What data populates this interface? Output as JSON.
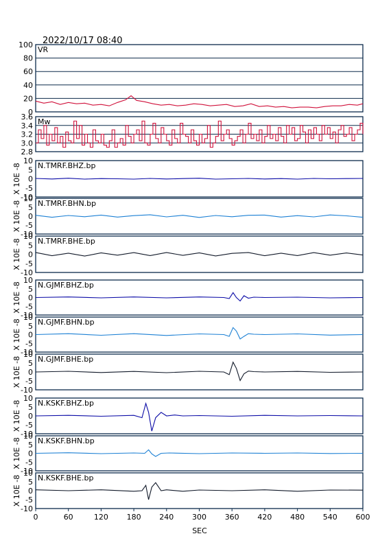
{
  "datetime": "2022/10/17  08:40",
  "xlabel": "SEC",
  "colors": {
    "red": "#d0103a",
    "navy": "#0a0aa6",
    "cyan": "#1a7fd4",
    "black": "#101828"
  },
  "chart_data": {
    "type": "line",
    "xlim": [
      0,
      600
    ],
    "xticks": [
      0,
      60,
      120,
      180,
      240,
      300,
      360,
      420,
      480,
      540,
      600
    ],
    "panels": [
      {
        "label": "VR",
        "ylabel": "",
        "ylim": [
          0,
          100
        ],
        "yticks": [
          "100",
          "80",
          "60",
          "40",
          "20",
          "0"
        ],
        "grid": true,
        "color": "red",
        "series": {
          "x": [
            0,
            15,
            30,
            45,
            60,
            75,
            90,
            105,
            120,
            135,
            150,
            165,
            175,
            185,
            200,
            215,
            230,
            245,
            260,
            275,
            290,
            305,
            320,
            335,
            350,
            365,
            380,
            395,
            410,
            425,
            440,
            455,
            470,
            485,
            500,
            515,
            530,
            545,
            560,
            575,
            590,
            600
          ],
          "y": [
            16,
            13,
            15,
            11,
            14,
            12,
            13,
            10,
            11,
            9,
            14,
            18,
            24,
            17,
            15,
            12,
            10,
            11,
            9,
            10,
            12,
            11,
            9,
            10,
            11,
            8,
            9,
            12,
            8,
            9,
            7,
            8,
            6,
            7,
            7,
            6,
            8,
            9,
            9,
            11,
            10,
            12
          ]
        }
      },
      {
        "label": "Mw",
        "ylabel": "",
        "ylim": [
          2.8,
          3.6
        ],
        "yticks": [
          "3.6",
          "3.4",
          "3.2",
          "3.0",
          "2.8"
        ],
        "grid": true,
        "color": "red",
        "series": {
          "x": [
            0,
            5,
            10,
            15,
            20,
            25,
            30,
            35,
            40,
            45,
            50,
            55,
            60,
            65,
            70,
            75,
            80,
            85,
            90,
            95,
            100,
            105,
            110,
            115,
            120,
            125,
            130,
            135,
            140,
            145,
            150,
            155,
            160,
            165,
            170,
            175,
            180,
            185,
            190,
            195,
            200,
            205,
            210,
            215,
            220,
            225,
            230,
            235,
            240,
            245,
            250,
            255,
            260,
            265,
            270,
            275,
            280,
            285,
            290,
            295,
            300,
            305,
            310,
            315,
            320,
            325,
            330,
            335,
            340,
            345,
            350,
            355,
            360,
            365,
            370,
            375,
            380,
            385,
            390,
            395,
            400,
            405,
            410,
            415,
            420,
            425,
            430,
            435,
            440,
            445,
            450,
            455,
            460,
            465,
            470,
            475,
            480,
            485,
            490,
            495,
            500,
            505,
            510,
            515,
            520,
            525,
            530,
            535,
            540,
            545,
            550,
            555,
            560,
            565,
            570,
            575,
            580,
            585,
            590,
            595,
            600
          ],
          "y": [
            3.0,
            3.3,
            3.1,
            3.4,
            2.95,
            3.2,
            3.05,
            3.35,
            3.0,
            3.15,
            2.9,
            3.25,
            3.05,
            3.0,
            3.5,
            3.1,
            3.4,
            2.95,
            3.2,
            3.0,
            2.9,
            3.3,
            3.05,
            3.0,
            3.2,
            2.95,
            2.9,
            3.05,
            3.3,
            2.9,
            3.0,
            3.1,
            2.95,
            3.4,
            3.15,
            3.0,
            3.2,
            3.3,
            3.05,
            3.5,
            3.0,
            2.95,
            3.2,
            3.45,
            3.1,
            3.0,
            3.35,
            3.2,
            3.05,
            2.95,
            3.3,
            3.1,
            3.0,
            3.45,
            3.2,
            3.15,
            3.0,
            3.3,
            3.05,
            2.95,
            3.2,
            3.0,
            3.1,
            3.4,
            2.9,
            3.0,
            3.15,
            3.5,
            3.05,
            3.2,
            3.3,
            3.1,
            2.95,
            3.05,
            3.15,
            3.3,
            3.0,
            3.2,
            3.45,
            3.1,
            3.2,
            3.05,
            3.3,
            3.0,
            3.15,
            3.4,
            3.1,
            3.2,
            3.05,
            3.35,
            3.15,
            3.0,
            3.4,
            3.2,
            3.35,
            3.05,
            3.1,
            3.4,
            3.25,
            3.0,
            3.3,
            3.1,
            3.35,
            3.2,
            3.05,
            3.4,
            3.2,
            3.35,
            3.1,
            3.25,
            3.0,
            3.3,
            3.4,
            3.15,
            3.2,
            3.35,
            3.05,
            3.2,
            3.3,
            3.45,
            3.2
          ]
        }
      },
      {
        "label": "N.TMRF.BHZ.bp",
        "ylabel": "X 10E -8",
        "ylim": [
          -10,
          10
        ],
        "yticks": [
          "10",
          "5",
          "0",
          "-5",
          "-10"
        ],
        "grid": false,
        "color": "navy",
        "series": {
          "x": [
            0,
            30,
            60,
            90,
            120,
            150,
            180,
            210,
            240,
            270,
            300,
            330,
            360,
            390,
            420,
            450,
            480,
            510,
            540,
            570,
            600
          ],
          "y": [
            0.2,
            -0.1,
            0.3,
            -0.2,
            0.1,
            0.0,
            -0.2,
            0.2,
            -0.1,
            0.1,
            0.3,
            -0.2,
            0.0,
            0.2,
            -0.1,
            0.1,
            -0.2,
            0.2,
            0.0,
            0.1,
            0.2
          ]
        }
      },
      {
        "label": "N.TMRF.BHN.bp",
        "ylabel": "X 10E -8",
        "ylim": [
          -10,
          10
        ],
        "yticks": [
          "10",
          "5",
          "0",
          "-5",
          "-10"
        ],
        "grid": false,
        "color": "cyan",
        "series": {
          "x": [
            0,
            30,
            60,
            90,
            120,
            150,
            180,
            210,
            240,
            270,
            300,
            330,
            360,
            390,
            420,
            450,
            480,
            510,
            540,
            570,
            600
          ],
          "y": [
            0.5,
            -0.6,
            0.4,
            -0.3,
            0.6,
            -0.5,
            0.3,
            0.8,
            -0.4,
            0.5,
            -0.7,
            0.4,
            -0.3,
            0.5,
            0.6,
            -0.5,
            0.3,
            -0.4,
            0.7,
            0.2,
            -0.6
          ]
        }
      },
      {
        "label": "N.TMRF.BHE.bp",
        "ylabel": "X 10E -8",
        "ylim": [
          -10,
          10
        ],
        "yticks": [
          "10",
          "5",
          "0",
          "-5",
          "-10"
        ],
        "grid": false,
        "color": "black",
        "series": {
          "x": [
            0,
            30,
            60,
            90,
            120,
            150,
            180,
            210,
            240,
            270,
            300,
            330,
            360,
            390,
            420,
            450,
            480,
            510,
            540,
            570,
            600
          ],
          "y": [
            1.0,
            -0.8,
            0.6,
            -1.0,
            0.8,
            -0.5,
            0.9,
            -0.7,
            1.0,
            -0.6,
            0.8,
            -0.9,
            0.5,
            1.0,
            -0.8,
            0.6,
            -0.7,
            0.9,
            -0.5,
            0.7,
            -0.4
          ]
        }
      },
      {
        "label": "N.GJMF.BHZ.bp",
        "ylabel": "X 10E -8",
        "ylim": [
          -10,
          10
        ],
        "yticks": [
          "10",
          "5",
          "0",
          "-5",
          "-10"
        ],
        "grid": false,
        "color": "navy",
        "series": {
          "x": [
            0,
            60,
            120,
            180,
            240,
            300,
            345,
            355,
            362,
            368,
            375,
            382,
            390,
            400,
            420,
            480,
            540,
            600
          ],
          "y": [
            0.0,
            0.3,
            -0.2,
            0.3,
            -0.2,
            0.3,
            0.0,
            -0.6,
            2.8,
            0.0,
            -2.0,
            1.0,
            -0.4,
            0.2,
            0.0,
            0.2,
            -0.2,
            0.0
          ]
        }
      },
      {
        "label": "N.GJMF.BHN.bp",
        "ylabel": "X 10E -8",
        "ylim": [
          -10,
          10
        ],
        "yticks": [
          "10",
          "5",
          "0",
          "-5",
          "-10"
        ],
        "grid": false,
        "color": "cyan",
        "series": {
          "x": [
            0,
            60,
            120,
            180,
            240,
            300,
            345,
            355,
            362,
            368,
            375,
            382,
            390,
            400,
            420,
            480,
            540,
            600
          ],
          "y": [
            0.0,
            0.5,
            -0.4,
            0.5,
            -0.5,
            0.4,
            0.0,
            -1.0,
            4.0,
            2.0,
            -2.5,
            -1.0,
            0.5,
            0.2,
            0.0,
            0.4,
            -0.3,
            0.0
          ]
        }
      },
      {
        "label": "N.GJMF.BHE.bp",
        "ylabel": "X 10E -8",
        "ylim": [
          -10,
          10
        ],
        "yticks": [
          "10",
          "5",
          "0",
          "-5",
          "-10"
        ],
        "grid": false,
        "color": "black",
        "series": {
          "x": [
            0,
            60,
            120,
            180,
            240,
            300,
            345,
            355,
            362,
            368,
            375,
            382,
            390,
            400,
            420,
            480,
            540,
            600
          ],
          "y": [
            0.0,
            0.4,
            -0.3,
            0.3,
            -0.4,
            0.4,
            0.0,
            -1.5,
            5.5,
            2.0,
            -4.8,
            -1.0,
            0.5,
            0.2,
            0.0,
            0.3,
            -0.2,
            0.0
          ]
        }
      },
      {
        "label": "N.KSKF.BHZ.bp",
        "ylabel": "X 10E -8",
        "ylim": [
          -10,
          10
        ],
        "yticks": [
          "10",
          "5",
          "0",
          "-5",
          "-10"
        ],
        "grid": false,
        "color": "navy",
        "series": {
          "x": [
            0,
            60,
            120,
            180,
            195,
            202,
            207,
            213,
            220,
            230,
            240,
            255,
            270,
            300,
            360,
            420,
            480,
            540,
            600
          ],
          "y": [
            0.0,
            0.3,
            -0.2,
            0.3,
            -1.0,
            7.0,
            2.0,
            -8.5,
            -1.0,
            2.0,
            0.0,
            0.5,
            0.0,
            0.2,
            -0.2,
            0.3,
            0.0,
            0.2,
            0.0
          ]
        }
      },
      {
        "label": "N.KSKF.BHN.bp",
        "ylabel": "X 10E -8",
        "ylim": [
          -10,
          10
        ],
        "yticks": [
          "10",
          "5",
          "0",
          "-5",
          "-10"
        ],
        "grid": false,
        "color": "cyan",
        "series": {
          "x": [
            0,
            60,
            120,
            180,
            200,
            207,
            213,
            220,
            230,
            245,
            300,
            360,
            420,
            480,
            540,
            600
          ],
          "y": [
            0.0,
            0.3,
            -0.2,
            0.2,
            0.0,
            2.0,
            -0.3,
            -1.8,
            0.0,
            0.2,
            -0.2,
            0.2,
            0.0,
            0.2,
            -0.1,
            0.0
          ]
        }
      },
      {
        "label": "N.KSKF.BHE.bp",
        "ylabel": "X 10E -8",
        "ylim": [
          -10,
          10
        ],
        "yticks": [
          "10",
          "5",
          "0",
          "-5",
          "-10"
        ],
        "grid": false,
        "color": "black",
        "series": {
          "x": [
            0,
            60,
            120,
            180,
            195,
            202,
            207,
            213,
            220,
            230,
            240,
            270,
            300,
            360,
            420,
            480,
            540,
            600
          ],
          "y": [
            0.5,
            0.0,
            0.5,
            -0.3,
            0.0,
            3.0,
            -5.0,
            2.0,
            4.5,
            0.0,
            0.5,
            -0.3,
            0.4,
            0.0,
            0.5,
            -0.3,
            0.4,
            0.3
          ]
        }
      }
    ]
  }
}
